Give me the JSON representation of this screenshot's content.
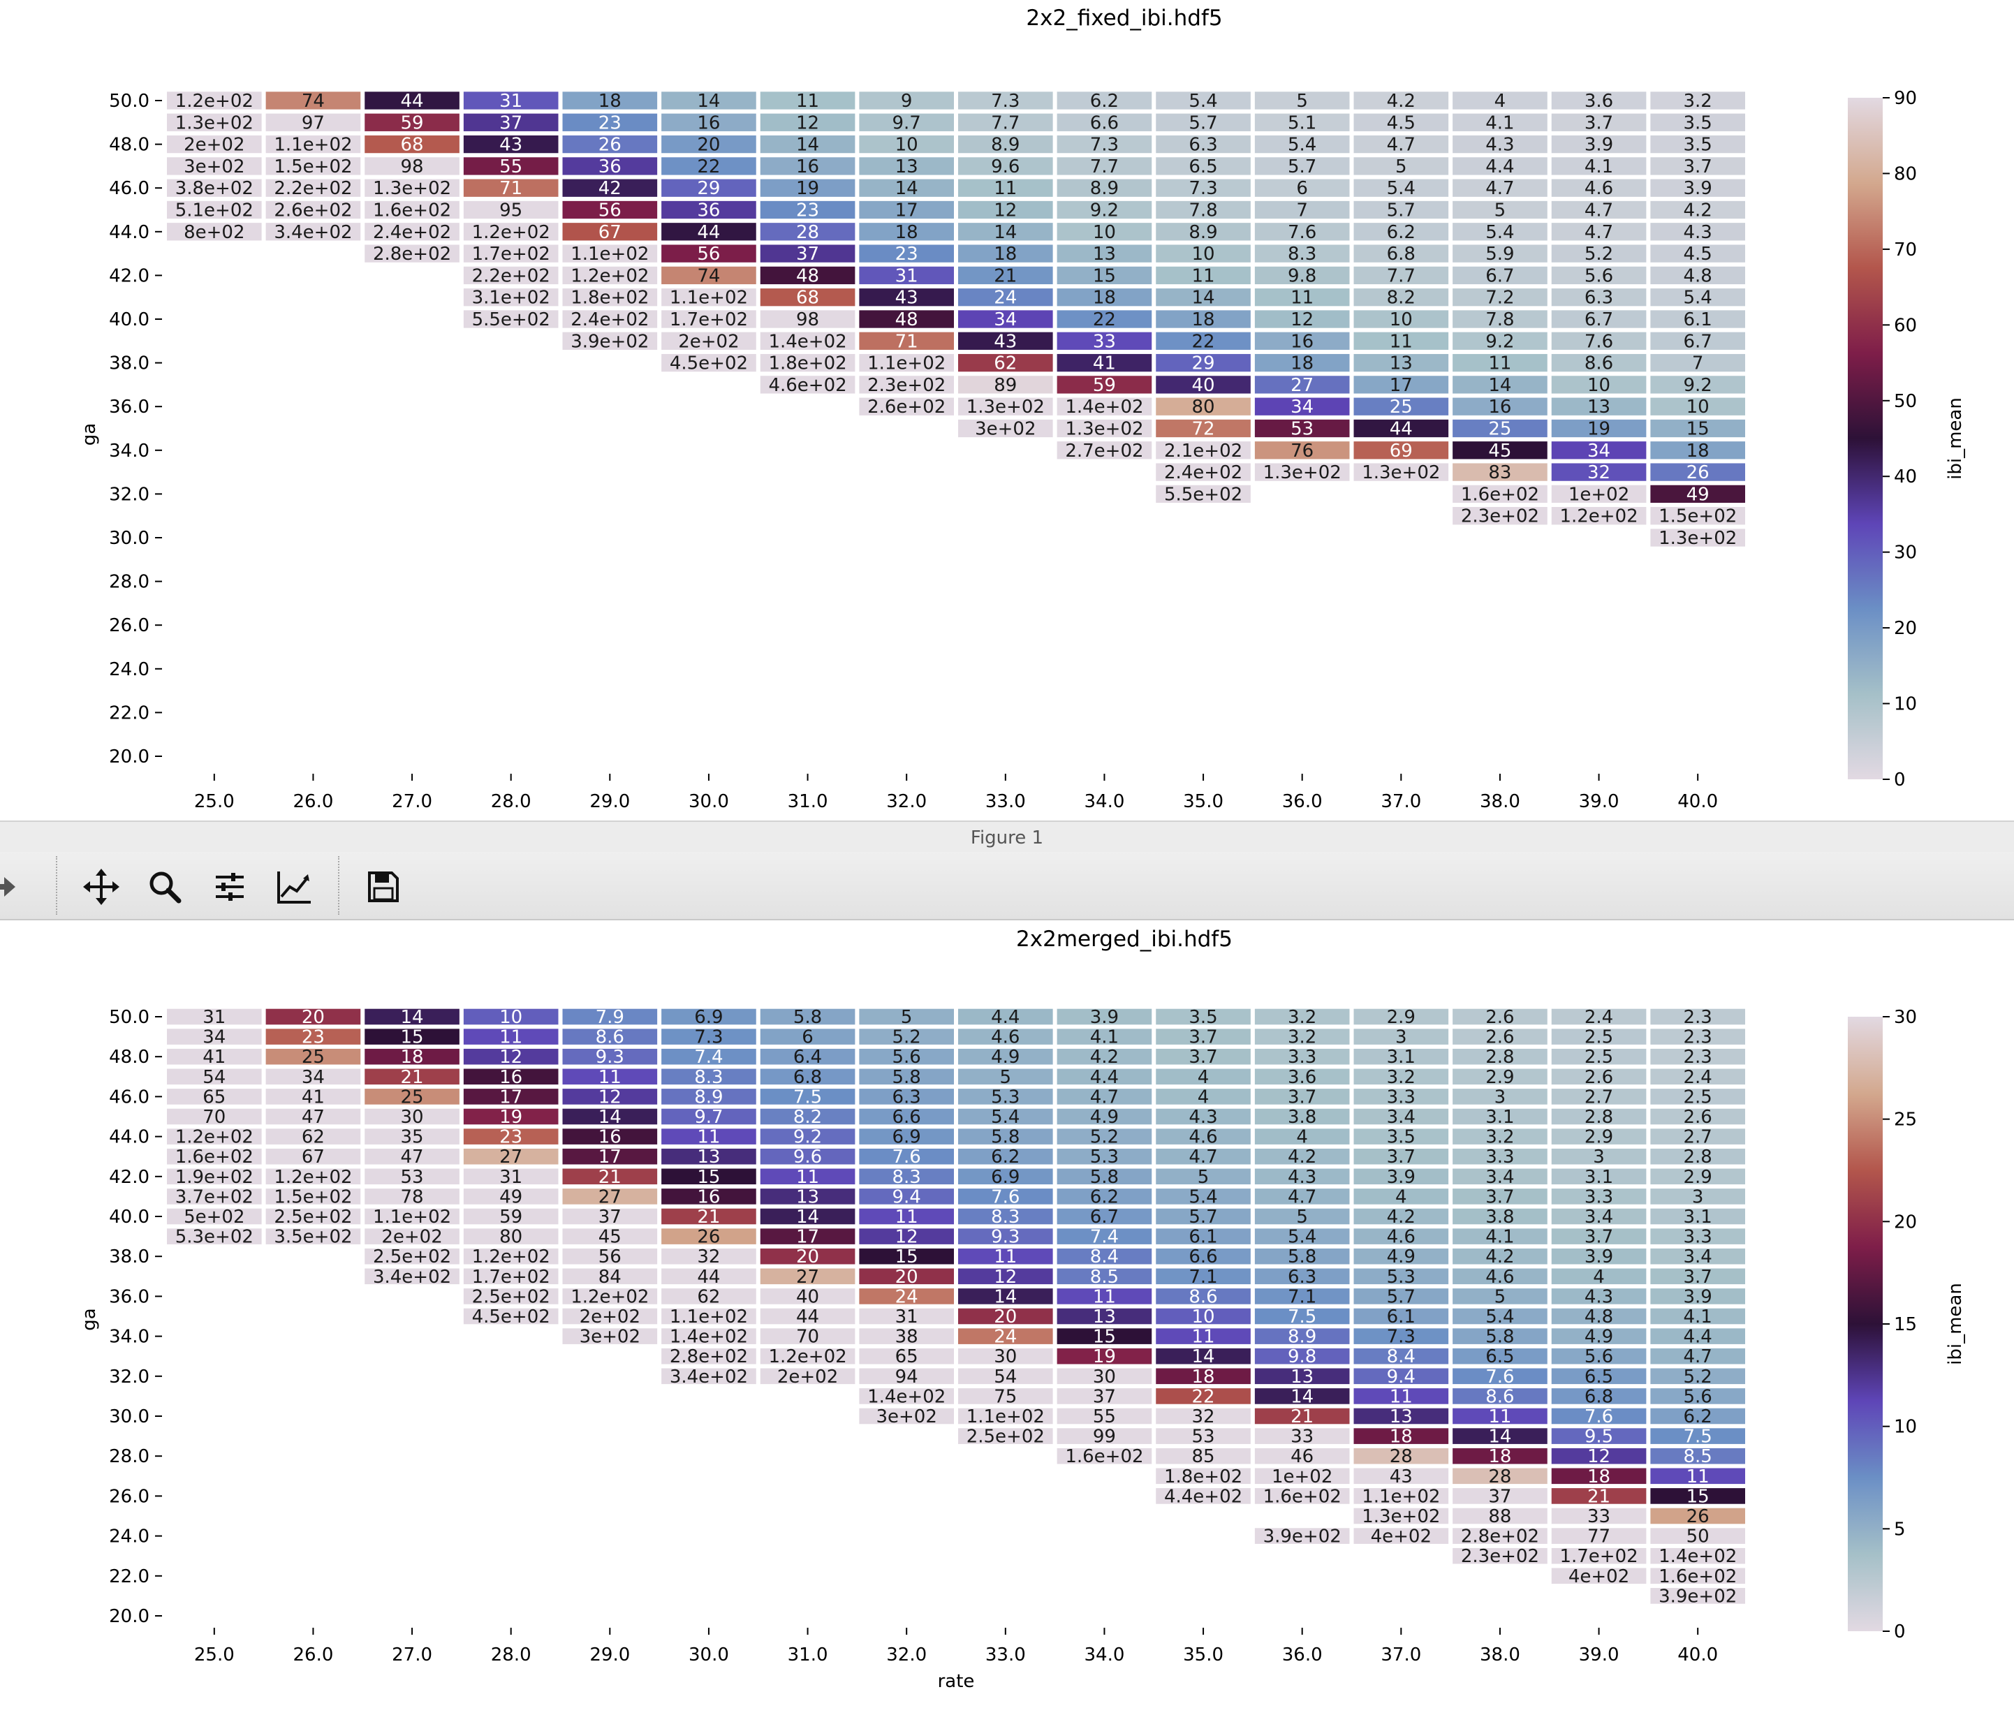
{
  "window": {
    "title": "Figure 1",
    "toolbar": [
      {
        "name": "forward-icon",
        "label": ""
      },
      {
        "name": "pan-icon",
        "label": ""
      },
      {
        "name": "zoom-icon",
        "label": ""
      },
      {
        "name": "configure-subplots-icon",
        "label": ""
      },
      {
        "name": "edit-axis-icon",
        "label": ""
      },
      {
        "name": "save-icon",
        "label": ""
      }
    ]
  },
  "colormap": {
    "name": "twilight",
    "stops": [
      "#e2d9e2",
      "#a5c0c8",
      "#6b8fc5",
      "#5e45b7",
      "#2d1137",
      "#7e1e49",
      "#b3564c",
      "#d3a88e",
      "#e2d9e2"
    ]
  },
  "chart_data": [
    {
      "type": "heatmap",
      "title": "2x2_fixed_ibi.hdf5",
      "xlabel": "",
      "ylabel": "ga",
      "colorbar_label": "ibi_mean",
      "vmin": 0,
      "vmax": 90,
      "colorbar_ticks": [
        "0",
        "10",
        "20",
        "30",
        "40",
        "50",
        "60",
        "70",
        "80",
        "90"
      ],
      "x_categories": [
        "25.0",
        "26.0",
        "27.0",
        "28.0",
        "29.0",
        "30.0",
        "31.0",
        "32.0",
        "33.0",
        "34.0",
        "35.0",
        "36.0",
        "37.0",
        "38.0",
        "39.0",
        "40.0"
      ],
      "y_tick_labels": [
        "50.0",
        "48.0",
        "46.0",
        "44.0",
        "42.0",
        "40.0",
        "38.0",
        "36.0",
        "34.0",
        "32.0",
        "30.0",
        "28.0",
        "26.0",
        "24.0",
        "22.0",
        "20.0"
      ],
      "y_values": [
        50.0,
        49.0,
        48.0,
        47.0,
        46.0,
        45.0,
        44.0,
        43.0,
        42.0,
        41.0,
        40.0,
        39.0,
        38.0,
        37.0,
        36.0,
        35.0,
        34.0,
        33.0,
        32.0,
        31.0,
        30.0
      ],
      "y_range": [
        20.0,
        50.0
      ],
      "rows": [
        [
          "1.2e+02",
          "74",
          "44",
          "31",
          "18",
          "14",
          "11",
          "9",
          "7.3",
          "6.2",
          "5.4",
          "5",
          "4.2",
          "4",
          "3.6",
          "3.2"
        ],
        [
          "1.3e+02",
          "97",
          "59",
          "37",
          "23",
          "16",
          "12",
          "9.7",
          "7.7",
          "6.6",
          "5.7",
          "5.1",
          "4.5",
          "4.1",
          "3.7",
          "3.5"
        ],
        [
          "2e+02",
          "1.1e+02",
          "68",
          "43",
          "26",
          "20",
          "14",
          "10",
          "8.9",
          "7.3",
          "6.3",
          "5.4",
          "4.7",
          "4.3",
          "3.9",
          "3.5"
        ],
        [
          "3e+02",
          "1.5e+02",
          "98",
          "55",
          "36",
          "22",
          "16",
          "13",
          "9.6",
          "7.7",
          "6.5",
          "5.7",
          "5",
          "4.4",
          "4.1",
          "3.7"
        ],
        [
          "3.8e+02",
          "2.2e+02",
          "1.3e+02",
          "71",
          "42",
          "29",
          "19",
          "14",
          "11",
          "8.9",
          "7.3",
          "6",
          "5.4",
          "4.7",
          "4.6",
          "3.9"
        ],
        [
          "5.1e+02",
          "2.6e+02",
          "1.6e+02",
          "95",
          "56",
          "36",
          "23",
          "17",
          "12",
          "9.2",
          "7.8",
          "7",
          "5.7",
          "5",
          "4.7",
          "4.2"
        ],
        [
          "8e+02",
          "3.4e+02",
          "2.4e+02",
          "1.2e+02",
          "67",
          "44",
          "28",
          "18",
          "14",
          "10",
          "8.9",
          "7.6",
          "6.2",
          "5.4",
          "4.7",
          "4.3"
        ],
        [
          null,
          null,
          "2.8e+02",
          "1.7e+02",
          "1.1e+02",
          "56",
          "37",
          "23",
          "18",
          "13",
          "10",
          "8.3",
          "6.8",
          "5.9",
          "5.2",
          "4.5"
        ],
        [
          null,
          null,
          null,
          "2.2e+02",
          "1.2e+02",
          "74",
          "48",
          "31",
          "21",
          "15",
          "11",
          "9.8",
          "7.7",
          "6.7",
          "5.6",
          "4.8"
        ],
        [
          null,
          null,
          null,
          "3.1e+02",
          "1.8e+02",
          "1.1e+02",
          "68",
          "43",
          "24",
          "18",
          "14",
          "11",
          "8.2",
          "7.2",
          "6.3",
          "5.4"
        ],
        [
          null,
          null,
          null,
          "5.5e+02",
          "2.4e+02",
          "1.7e+02",
          "98",
          "48",
          "34",
          "22",
          "18",
          "12",
          "10",
          "7.8",
          "6.7",
          "6.1"
        ],
        [
          null,
          null,
          null,
          null,
          "3.9e+02",
          "2e+02",
          "1.4e+02",
          "71",
          "43",
          "33",
          "22",
          "16",
          "11",
          "9.2",
          "7.6",
          "6.7"
        ],
        [
          null,
          null,
          null,
          null,
          null,
          "4.5e+02",
          "1.8e+02",
          "1.1e+02",
          "62",
          "41",
          "29",
          "18",
          "13",
          "11",
          "8.6",
          "7"
        ],
        [
          null,
          null,
          null,
          null,
          null,
          null,
          "4.6e+02",
          "2.3e+02",
          "89",
          "59",
          "40",
          "27",
          "17",
          "14",
          "10",
          "9.2"
        ],
        [
          null,
          null,
          null,
          null,
          null,
          null,
          null,
          "2.6e+02",
          "1.3e+02",
          "1.4e+02",
          "80",
          "34",
          "25",
          "16",
          "13",
          "10"
        ],
        [
          null,
          null,
          null,
          null,
          null,
          null,
          null,
          null,
          "3e+02",
          "1.3e+02",
          "72",
          "53",
          "44",
          "25",
          "19",
          "15"
        ],
        [
          null,
          null,
          null,
          null,
          null,
          null,
          null,
          null,
          null,
          "2.7e+02",
          "2.1e+02",
          "76",
          "69",
          "45",
          "34",
          "18"
        ],
        [
          null,
          null,
          null,
          null,
          null,
          null,
          null,
          null,
          null,
          null,
          "2.4e+02",
          "1.3e+02",
          "1.3e+02",
          "83",
          "32",
          "26"
        ],
        [
          null,
          null,
          null,
          null,
          null,
          null,
          null,
          null,
          null,
          null,
          "5.5e+02",
          null,
          null,
          "1.6e+02",
          "1e+02",
          "49"
        ],
        [
          null,
          null,
          null,
          null,
          null,
          null,
          null,
          null,
          null,
          null,
          null,
          null,
          null,
          "2.3e+02",
          "1.2e+02",
          "1.5e+02"
        ],
        [
          null,
          null,
          null,
          null,
          null,
          null,
          null,
          null,
          null,
          null,
          null,
          null,
          null,
          null,
          null,
          "1.3e+02"
        ]
      ]
    },
    {
      "type": "heatmap",
      "title": "2x2merged_ibi.hdf5",
      "xlabel": "rate",
      "ylabel": "ga",
      "colorbar_label": "ibi_mean",
      "vmin": 0,
      "vmax": 30,
      "colorbar_ticks": [
        "0",
        "5",
        "10",
        "15",
        "20",
        "25",
        "30"
      ],
      "x_categories": [
        "25.0",
        "26.0",
        "27.0",
        "28.0",
        "29.0",
        "30.0",
        "31.0",
        "32.0",
        "33.0",
        "34.0",
        "35.0",
        "36.0",
        "37.0",
        "38.0",
        "39.0",
        "40.0"
      ],
      "y_tick_labels": [
        "50.0",
        "48.0",
        "46.0",
        "44.0",
        "42.0",
        "40.0",
        "38.0",
        "36.0",
        "34.0",
        "32.0",
        "30.0",
        "28.0",
        "26.0",
        "24.0",
        "22.0",
        "20.0"
      ],
      "y_values": [
        50.0,
        49.0,
        48.0,
        47.0,
        46.0,
        45.0,
        44.0,
        43.0,
        42.0,
        41.0,
        40.0,
        39.0,
        38.0,
        37.0,
        36.0,
        35.0,
        34.0,
        33.0,
        32.0,
        31.0,
        30.0,
        29.0,
        28.0,
        27.0,
        26.0,
        25.0,
        24.0,
        23.0,
        22.0,
        21.0
      ],
      "y_range": [
        20.0,
        50.0
      ],
      "rows": [
        [
          "31",
          "20",
          "14",
          "10",
          "7.9",
          "6.9",
          "5.8",
          "5",
          "4.4",
          "3.9",
          "3.5",
          "3.2",
          "2.9",
          "2.6",
          "2.4",
          "2.3"
        ],
        [
          "34",
          "23",
          "15",
          "11",
          "8.6",
          "7.3",
          "6",
          "5.2",
          "4.6",
          "4.1",
          "3.7",
          "3.2",
          "3",
          "2.6",
          "2.5",
          "2.3"
        ],
        [
          "41",
          "25",
          "18",
          "12",
          "9.3",
          "7.4",
          "6.4",
          "5.6",
          "4.9",
          "4.2",
          "3.7",
          "3.3",
          "3.1",
          "2.8",
          "2.5",
          "2.3"
        ],
        [
          "54",
          "34",
          "21",
          "16",
          "11",
          "8.3",
          "6.8",
          "5.8",
          "5",
          "4.4",
          "4",
          "3.6",
          "3.2",
          "2.9",
          "2.6",
          "2.4"
        ],
        [
          "65",
          "41",
          "25",
          "17",
          "12",
          "8.9",
          "7.5",
          "6.3",
          "5.3",
          "4.7",
          "4",
          "3.7",
          "3.3",
          "3",
          "2.7",
          "2.5"
        ],
        [
          "70",
          "47",
          "30",
          "19",
          "14",
          "9.7",
          "8.2",
          "6.6",
          "5.4",
          "4.9",
          "4.3",
          "3.8",
          "3.4",
          "3.1",
          "2.8",
          "2.6"
        ],
        [
          "1.2e+02",
          "62",
          "35",
          "23",
          "16",
          "11",
          "9.2",
          "6.9",
          "5.8",
          "5.2",
          "4.6",
          "4",
          "3.5",
          "3.2",
          "2.9",
          "2.7"
        ],
        [
          "1.6e+02",
          "67",
          "47",
          "27",
          "17",
          "13",
          "9.6",
          "7.6",
          "6.2",
          "5.3",
          "4.7",
          "4.2",
          "3.7",
          "3.3",
          "3",
          "2.8"
        ],
        [
          "1.9e+02",
          "1.2e+02",
          "53",
          "31",
          "21",
          "15",
          "11",
          "8.3",
          "6.9",
          "5.8",
          "5",
          "4.3",
          "3.9",
          "3.4",
          "3.1",
          "2.9"
        ],
        [
          "3.7e+02",
          "1.5e+02",
          "78",
          "49",
          "27",
          "16",
          "13",
          "9.4",
          "7.6",
          "6.2",
          "5.4",
          "4.7",
          "4",
          "3.7",
          "3.3",
          "3"
        ],
        [
          "5e+02",
          "2.5e+02",
          "1.1e+02",
          "59",
          "37",
          "21",
          "14",
          "11",
          "8.3",
          "6.7",
          "5.7",
          "5",
          "4.2",
          "3.8",
          "3.4",
          "3.1"
        ],
        [
          "5.3e+02",
          "3.5e+02",
          "2e+02",
          "80",
          "45",
          "26",
          "17",
          "12",
          "9.3",
          "7.4",
          "6.1",
          "5.4",
          "4.6",
          "4.1",
          "3.7",
          "3.3"
        ],
        [
          null,
          null,
          "2.5e+02",
          "1.2e+02",
          "56",
          "32",
          "20",
          "15",
          "11",
          "8.4",
          "6.6",
          "5.8",
          "4.9",
          "4.2",
          "3.9",
          "3.4"
        ],
        [
          null,
          null,
          "3.4e+02",
          "1.7e+02",
          "84",
          "44",
          "27",
          "20",
          "12",
          "8.5",
          "7.1",
          "6.3",
          "5.3",
          "4.6",
          "4",
          "3.7"
        ],
        [
          null,
          null,
          null,
          "2.5e+02",
          "1.2e+02",
          "62",
          "40",
          "24",
          "14",
          "11",
          "8.6",
          "7.1",
          "5.7",
          "5",
          "4.3",
          "3.9"
        ],
        [
          null,
          null,
          null,
          "4.5e+02",
          "2e+02",
          "1.1e+02",
          "44",
          "31",
          "20",
          "13",
          "10",
          "7.5",
          "6.1",
          "5.4",
          "4.8",
          "4.1"
        ],
        [
          null,
          null,
          null,
          null,
          "3e+02",
          "1.4e+02",
          "70",
          "38",
          "24",
          "15",
          "11",
          "8.9",
          "7.3",
          "5.8",
          "4.9",
          "4.4"
        ],
        [
          null,
          null,
          null,
          null,
          null,
          "2.8e+02",
          "1.2e+02",
          "65",
          "30",
          "19",
          "14",
          "9.8",
          "8.4",
          "6.5",
          "5.6",
          "4.7"
        ],
        [
          null,
          null,
          null,
          null,
          null,
          "3.4e+02",
          "2e+02",
          "94",
          "54",
          "30",
          "18",
          "13",
          "9.4",
          "7.6",
          "6.5",
          "5.2"
        ],
        [
          null,
          null,
          null,
          null,
          null,
          null,
          null,
          "1.4e+02",
          "75",
          "37",
          "22",
          "14",
          "11",
          "8.6",
          "6.8",
          "5.6"
        ],
        [
          null,
          null,
          null,
          null,
          null,
          null,
          null,
          "3e+02",
          "1.1e+02",
          "55",
          "32",
          "21",
          "13",
          "11",
          "7.6",
          "6.2"
        ],
        [
          null,
          null,
          null,
          null,
          null,
          null,
          null,
          null,
          "2.5e+02",
          "99",
          "53",
          "33",
          "18",
          "14",
          "9.5",
          "7.5"
        ],
        [
          null,
          null,
          null,
          null,
          null,
          null,
          null,
          null,
          null,
          "1.6e+02",
          "85",
          "46",
          "28",
          "18",
          "12",
          "8.5"
        ],
        [
          null,
          null,
          null,
          null,
          null,
          null,
          null,
          null,
          null,
          null,
          "1.8e+02",
          "1e+02",
          "43",
          "28",
          "18",
          "11"
        ],
        [
          null,
          null,
          null,
          null,
          null,
          null,
          null,
          null,
          null,
          null,
          "4.4e+02",
          "1.6e+02",
          "1.1e+02",
          "37",
          "21",
          "15"
        ],
        [
          null,
          null,
          null,
          null,
          null,
          null,
          null,
          null,
          null,
          null,
          null,
          null,
          "1.3e+02",
          "88",
          "33",
          "26"
        ],
        [
          null,
          null,
          null,
          null,
          null,
          null,
          null,
          null,
          null,
          null,
          null,
          "3.9e+02",
          "4e+02",
          "2.8e+02",
          "77",
          "50"
        ],
        [
          null,
          null,
          null,
          null,
          null,
          null,
          null,
          null,
          null,
          null,
          null,
          null,
          null,
          "2.3e+02",
          "1.7e+02",
          "1.4e+02"
        ],
        [
          null,
          null,
          null,
          null,
          null,
          null,
          null,
          null,
          null,
          null,
          null,
          null,
          null,
          null,
          "4e+02",
          "1.6e+02"
        ],
        [
          null,
          null,
          null,
          null,
          null,
          null,
          null,
          null,
          null,
          null,
          null,
          null,
          null,
          null,
          null,
          "3.9e+02"
        ]
      ]
    }
  ]
}
